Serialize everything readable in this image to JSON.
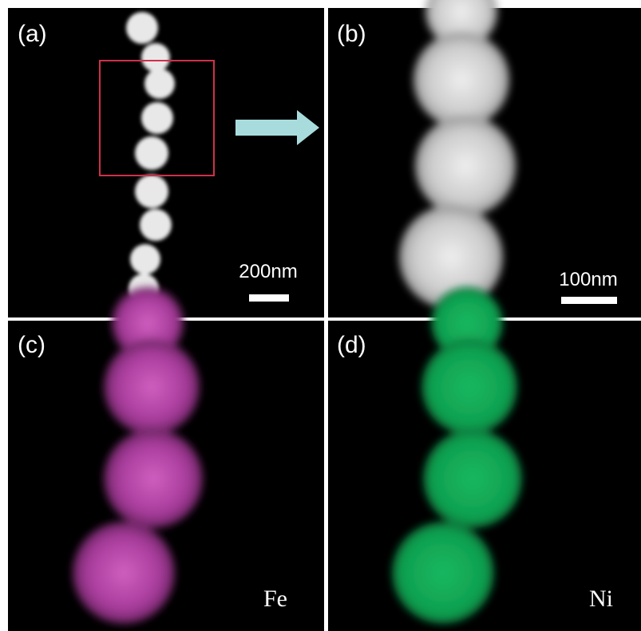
{
  "panels": [
    {
      "label": "(a)",
      "scale_bar": "200nm"
    },
    {
      "label": "(b)",
      "scale_bar": "100nm"
    },
    {
      "label": "(c)",
      "element": "Fe"
    },
    {
      "label": "(d)",
      "element": "Ni"
    }
  ]
}
